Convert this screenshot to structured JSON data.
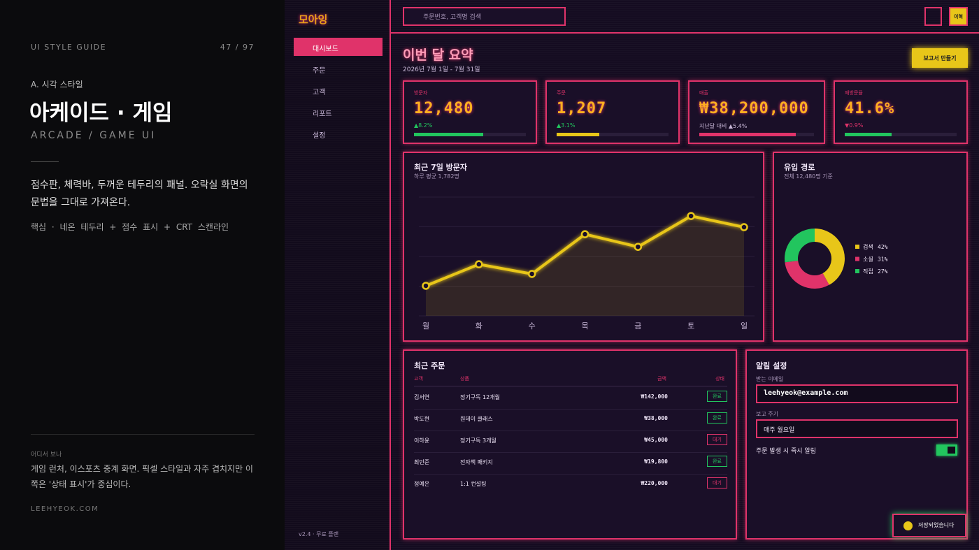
{
  "guide": {
    "label": "UI STYLE GUIDE",
    "page": "47 / 97",
    "section": "A. 시각 스타일",
    "title": "아케이드 · 게임",
    "subtitle": "ARCADE / GAME UI",
    "description": "점수판, 체력바, 두꺼운 테두리의 패널. 오락실 화면의 문법을 그대로 가져온다.",
    "core": "핵심 · 네온 테두리 + 점수 표시 + CRT 스캔라인",
    "where_label": "어디서 보나",
    "where_text": "게임 런처, 이스포츠 중계 화면. 픽셀 스타일과 자주 겹치지만 이쪽은 '상태 표시'가 중심이다.",
    "site": "LEEHYEOK.COM"
  },
  "app": {
    "logo": "모아잉",
    "nav": [
      "대시보드",
      "주문",
      "고객",
      "리포트",
      "설정"
    ],
    "plan": "v2.4 · 무료 플랜",
    "search_placeholder": "주문번호, 고객명 검색",
    "avatar": "이혁",
    "page_title": "이번 달 요약",
    "date_range": "2026년 7월 1일 - 7월 31일",
    "report_button": "보고서 만들기",
    "kpis": [
      {
        "label": "방문자",
        "value": "12,480",
        "delta": "▲8.2%",
        "delta_color": "#22c55e",
        "progress": 62,
        "color": "#22c55e"
      },
      {
        "label": "주문",
        "value": "1,207",
        "delta": "▲3.1%",
        "delta_color": "#22c55e",
        "progress": 38,
        "color": "#e8c619"
      },
      {
        "label": "매출",
        "value": "₩38,200,000",
        "delta": "지난달 대비 ▲5.4%",
        "delta_color": "#c9b8d8",
        "progress": 84,
        "color": "#e0336a"
      },
      {
        "label": "재방문율",
        "value": "41.6%",
        "delta": "▼0.9%",
        "delta_color": "#e0336a",
        "progress": 42,
        "color": "#22c55e"
      }
    ],
    "visitors_chart": {
      "type": "line",
      "title": "최근 7일 방문자",
      "subtitle": "하루 평균 1,782명",
      "categories": [
        "월",
        "화",
        "수",
        "목",
        "금",
        "토",
        "일"
      ],
      "values": [
        810,
        1390,
        1130,
        2200,
        1860,
        2690,
        2390
      ],
      "color": "#e8c619",
      "ylim": [
        0,
        3200
      ]
    },
    "traffic_chart": {
      "type": "donut",
      "title": "유입 경로",
      "subtitle": "전체 12,480명 기준",
      "categories": [
        "검색",
        "소셜",
        "직접"
      ],
      "values": [
        42,
        31,
        27
      ],
      "value_labels": [
        "42%",
        "31%",
        "27%"
      ],
      "colors": [
        "#e8c619",
        "#e0336a",
        "#22c55e"
      ]
    },
    "orders": {
      "title": "최근 주문",
      "columns": [
        "고객",
        "상품",
        "금액",
        "상태"
      ],
      "rows": [
        [
          "김서연",
          "정기구독 12개월",
          "₩142,000",
          "완료"
        ],
        [
          "박도현",
          "원데이 클래스",
          "₩38,000",
          "완료"
        ],
        [
          "이하윤",
          "정기구독 3개월",
          "₩45,000",
          "대기"
        ],
        [
          "최민준",
          "전자책 패키지",
          "₩19,800",
          "완료"
        ],
        [
          "정예은",
          "1:1 컨설팅",
          "₩220,000",
          "대기"
        ]
      ],
      "status_colors": [
        "#22c55e",
        "#22c55e",
        "#e0336a",
        "#22c55e",
        "#e0336a"
      ]
    },
    "settings": {
      "title": "알림 설정",
      "email_label": "받는 이메일",
      "email": "leehyeok@example.com",
      "period_label": "보고 주기",
      "period": "매주 월요일",
      "toggle_label": "주문 발생 시 즉시 알림"
    },
    "toast": "저장되었습니다"
  }
}
